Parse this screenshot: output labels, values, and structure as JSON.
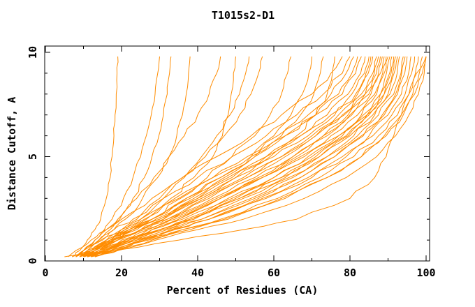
{
  "title": "T1015s2-D1",
  "chart_data": {
    "type": "line",
    "title": "T1015s2-D1",
    "xlabel": "Percent of Residues (CA)",
    "ylabel": "Distance Cutoff, A",
    "xlim": [
      0,
      100
    ],
    "ylim": [
      0,
      10
    ],
    "x_major_ticks": [
      0,
      20,
      40,
      60,
      80,
      100
    ],
    "x_minor_ticks": [
      10,
      30,
      50,
      70,
      90
    ],
    "y_major_ticks": [
      0,
      5,
      10
    ],
    "y_minor_ticks": [
      1,
      2,
      3,
      4,
      6,
      7,
      8,
      9
    ],
    "grid": false,
    "legend": "none",
    "colors": {
      "line": "#ff8c00",
      "text": "#000000",
      "background": "#ffffff",
      "axis": "#000000"
    },
    "cutoff_levels": [
      0.2,
      0.5,
      1,
      1.5,
      2,
      3,
      4,
      5,
      6,
      7,
      8,
      9,
      9.8
    ],
    "series_percent_at_levels": [
      [
        7,
        9,
        11,
        13,
        14.5,
        16,
        17,
        17.5,
        18,
        18.3,
        18.6,
        18.8,
        19
      ],
      [
        8,
        10,
        13,
        15.5,
        17.5,
        20.5,
        23,
        25,
        26.5,
        27.8,
        28.8,
        29.5,
        30
      ],
      [
        9,
        11,
        14,
        17,
        19.5,
        23,
        26,
        28,
        29.8,
        31,
        32,
        32.6,
        33
      ],
      [
        9,
        11,
        14.5,
        18,
        21,
        25.5,
        29.5,
        32.5,
        34.5,
        36,
        37,
        37.6,
        38
      ],
      [
        8,
        10,
        13,
        16,
        19,
        24,
        28.5,
        32.5,
        36.5,
        40,
        43,
        45,
        46
      ],
      [
        10,
        13,
        17.5,
        22,
        26.5,
        33,
        39,
        44,
        46.5,
        48,
        48.8,
        49.4,
        50
      ],
      [
        10,
        13,
        17,
        21,
        25,
        31,
        36.5,
        41,
        45,
        48.5,
        51,
        52.6,
        53.5
      ],
      [
        9,
        12,
        16,
        20,
        24,
        30,
        36,
        42,
        47,
        51,
        54,
        56,
        57
      ],
      [
        10,
        13,
        18,
        23,
        28,
        35.5,
        42.5,
        49,
        55,
        59,
        62,
        63.6,
        64.5
      ],
      [
        11,
        14,
        19,
        25,
        31,
        39,
        47,
        54,
        60,
        64.5,
        67.5,
        69.2,
        70
      ],
      [
        9,
        12,
        17,
        22,
        28,
        37,
        46,
        55,
        62,
        67,
        70.5,
        72.2,
        73
      ],
      [
        10,
        13,
        18,
        24,
        30,
        40,
        49,
        58,
        66,
        71,
        74,
        75.4,
        76
      ],
      [
        6,
        8,
        12,
        16,
        20,
        28,
        36,
        45,
        54,
        62,
        70,
        75,
        78
      ],
      [
        8,
        10,
        14,
        18,
        23,
        31,
        40,
        49,
        58,
        66,
        73,
        78,
        80
      ],
      [
        9,
        12,
        16,
        21,
        26,
        35,
        44,
        53,
        61,
        69,
        75,
        79,
        81
      ],
      [
        10,
        13,
        18,
        23,
        28,
        37,
        46,
        55,
        63,
        71,
        77,
        80.5,
        82
      ],
      [
        7,
        10,
        15,
        20,
        25,
        34,
        44,
        54,
        63,
        71,
        78,
        81.5,
        83
      ],
      [
        11,
        14,
        19,
        25,
        31,
        41,
        50,
        59,
        67,
        74,
        79.5,
        82.8,
        84
      ],
      [
        8,
        11,
        16,
        22,
        28,
        38,
        48,
        58,
        67,
        75,
        80.5,
        83.8,
        85
      ],
      [
        12,
        15,
        21,
        27,
        33,
        43,
        53,
        62,
        70,
        77,
        82,
        84.2,
        85.5
      ],
      [
        9,
        12,
        17,
        23,
        29,
        40,
        50,
        60,
        69,
        76,
        81.5,
        84.8,
        86
      ],
      [
        10,
        14,
        19,
        25,
        32,
        42,
        53,
        63,
        71,
        78,
        83,
        86,
        87
      ],
      [
        13,
        16,
        22,
        28,
        35,
        46,
        56,
        65,
        73,
        79.5,
        84,
        86.4,
        87.5
      ],
      [
        8,
        12,
        17,
        23,
        30,
        41,
        52,
        62,
        71,
        78.5,
        84,
        87,
        88
      ],
      [
        11,
        15,
        21,
        28,
        35,
        46,
        57,
        66,
        74,
        80.5,
        85,
        87.5,
        88.5
      ],
      [
        9,
        13,
        18,
        25,
        32,
        44,
        55,
        65,
        73,
        80,
        85.5,
        88,
        89
      ],
      [
        12,
        16,
        23,
        30,
        37,
        49,
        60,
        69,
        77,
        83,
        87,
        88.6,
        89.5
      ],
      [
        10,
        14,
        20,
        27,
        34,
        46,
        57,
        67,
        75,
        82,
        86.5,
        89,
        90
      ],
      [
        13,
        17,
        24,
        31,
        39,
        51,
        62,
        71,
        79,
        84.5,
        88,
        89.6,
        90.5
      ],
      [
        9,
        13,
        19,
        26,
        33,
        45,
        57,
        68,
        77,
        83.5,
        88,
        90.4,
        91
      ],
      [
        12,
        16,
        23,
        30,
        38,
        50,
        62,
        72,
        79.5,
        85,
        89,
        90.8,
        91.5
      ],
      [
        10,
        14,
        21,
        28,
        36,
        48,
        60,
        70,
        78,
        84.5,
        89,
        91.2,
        92
      ],
      [
        13,
        18,
        25,
        33,
        41,
        54,
        65,
        74,
        81,
        86.5,
        90,
        91.6,
        92.5
      ],
      [
        11,
        15,
        22,
        30,
        38,
        51,
        63,
        72,
        80,
        86,
        90.5,
        92.4,
        93
      ],
      [
        10,
        15,
        22,
        30,
        39,
        52,
        64,
        74,
        82,
        87.5,
        91.5,
        93.4,
        94
      ],
      [
        13,
        18,
        26,
        34,
        43,
        56,
        67,
        76,
        83,
        88.5,
        92,
        93.6,
        94.5
      ],
      [
        11,
        16,
        24,
        32,
        41,
        55,
        67,
        76,
        83.5,
        89,
        92.5,
        94.4,
        95
      ],
      [
        12,
        17,
        25,
        34,
        43,
        57,
        69,
        78,
        85,
        90,
        93.5,
        95.4,
        96
      ],
      [
        10,
        16,
        24,
        33,
        43,
        58,
        70,
        79,
        86,
        91,
        94.5,
        96.2,
        97
      ],
      [
        12,
        18,
        27,
        36,
        46,
        61,
        72,
        81,
        87.5,
        92.5,
        95.5,
        97.2,
        98
      ],
      [
        13,
        19,
        28,
        38,
        48,
        63,
        74,
        83,
        89,
        93.5,
        96.5,
        98.2,
        99
      ],
      [
        11,
        17,
        26,
        36,
        47,
        62,
        74,
        83,
        89.5,
        94,
        97,
        99,
        100
      ],
      [
        12,
        19,
        29,
        40,
        52,
        68,
        79,
        87,
        92,
        95.5,
        98,
        99.5,
        100
      ],
      [
        5,
        18,
        35,
        52,
        66,
        80,
        86.5,
        89.5,
        91.5,
        93.5,
        95.5,
        97.5,
        100
      ]
    ]
  }
}
